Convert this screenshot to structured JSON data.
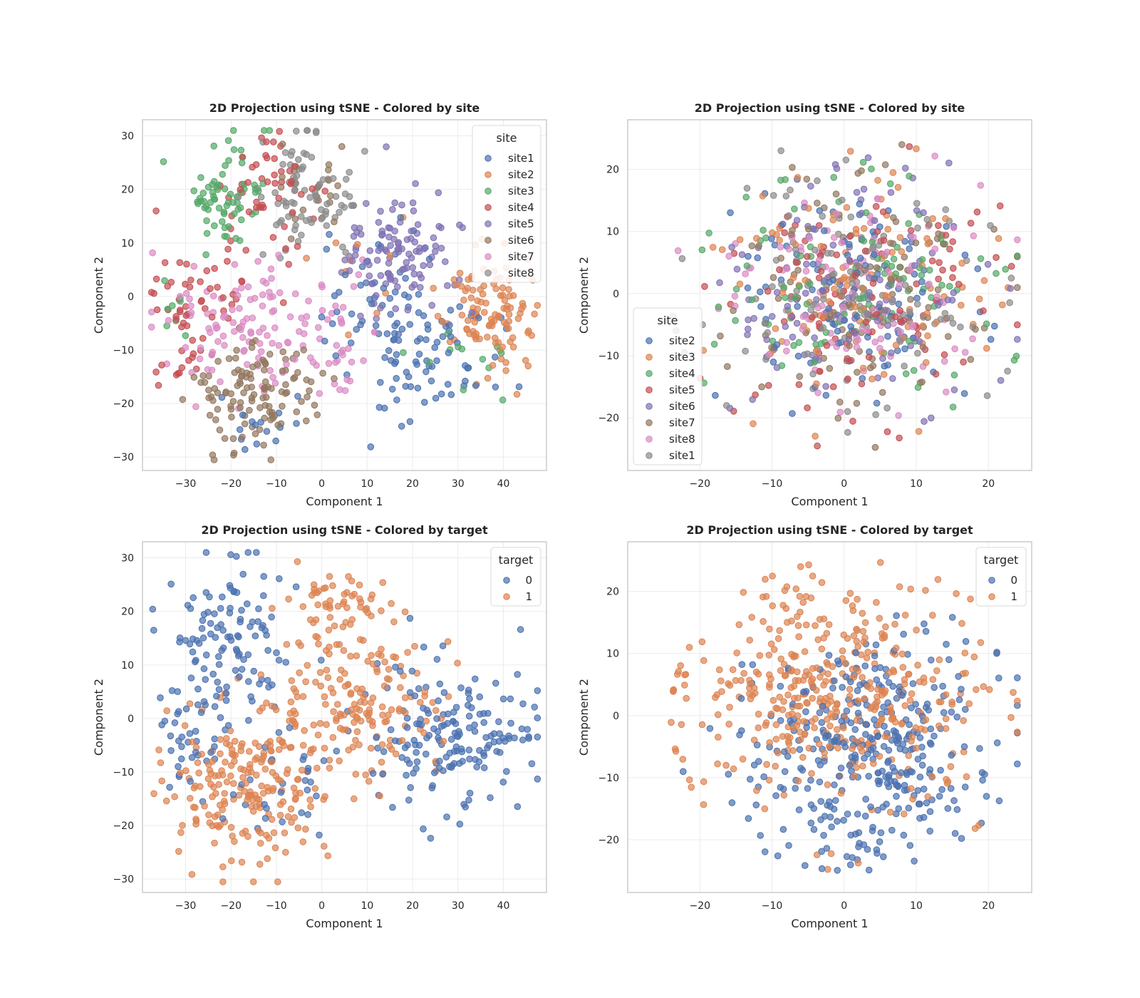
{
  "colors": {
    "blue": "#4c72b0",
    "orange": "#dd8452",
    "green": "#55a868",
    "red": "#c44e52",
    "purple": "#8172b3",
    "brown": "#937860",
    "pink": "#da8bc3",
    "gray": "#8c8c8c",
    "frame": "#cccccc",
    "grid": "#ebebeb",
    "text": "#262626"
  },
  "chart_data": [
    {
      "type": "scatter",
      "title": "2D Projection using tSNE - Colored by site",
      "xlabel": "Component 1",
      "ylabel": "Component 2",
      "xlim": [
        -39.5,
        49.5
      ],
      "ylim": [
        -32.5,
        33
      ],
      "xticks": [
        -30,
        -20,
        -10,
        0,
        10,
        20,
        30,
        40
      ],
      "yticks": [
        -30,
        -20,
        -10,
        0,
        10,
        20,
        30
      ],
      "grid": true,
      "legend": {
        "title": "site",
        "position": "top-right"
      },
      "seed": 11,
      "series": [
        {
          "name": "site1",
          "color": "#4c72b0",
          "clusters": [
            {
              "cx": 22,
              "cy": -11,
              "sx": 8,
              "sy": 6,
              "n": 85
            },
            {
              "cx": 10,
              "cy": 0,
              "sx": 6,
              "sy": 6,
              "n": 35
            },
            {
              "cx": -14,
              "cy": -24,
              "sx": 3,
              "sy": 3,
              "n": 15
            }
          ]
        },
        {
          "name": "site2",
          "color": "#dd8452",
          "clusters": [
            {
              "cx": 37,
              "cy": -3,
              "sx": 5,
              "sy": 6,
              "n": 110
            },
            {
              "cx": 10,
              "cy": 5,
              "sx": 6,
              "sy": 6,
              "n": 10
            }
          ]
        },
        {
          "name": "site3",
          "color": "#55a868",
          "clusters": [
            {
              "cx": -21,
              "cy": 18,
              "sx": 4,
              "sy": 5,
              "n": 70
            },
            {
              "cx": -34,
              "cy": -3,
              "sx": 2,
              "sy": 2,
              "n": 8
            },
            {
              "cx": 30,
              "cy": -12,
              "sx": 6,
              "sy": 4,
              "n": 12
            }
          ]
        },
        {
          "name": "site4",
          "color": "#c44e52",
          "clusters": [
            {
              "cx": -30,
              "cy": -3,
              "sx": 4,
              "sy": 6,
              "n": 45
            },
            {
              "cx": -12,
              "cy": 22,
              "sx": 5,
              "sy": 5,
              "n": 45
            },
            {
              "cx": -20,
              "cy": 5,
              "sx": 8,
              "sy": 8,
              "n": 20
            }
          ]
        },
        {
          "name": "site5",
          "color": "#8172b3",
          "clusters": [
            {
              "cx": 17,
              "cy": 9,
              "sx": 7,
              "sy": 6,
              "n": 110
            }
          ]
        },
        {
          "name": "site6",
          "color": "#937860",
          "clusters": [
            {
              "cx": -15,
              "cy": -18,
              "sx": 7,
              "sy": 5,
              "n": 120
            },
            {
              "cx": -2,
              "cy": 20,
              "sx": 5,
              "sy": 5,
              "n": 20
            }
          ]
        },
        {
          "name": "site7",
          "color": "#da8bc3",
          "clusters": [
            {
              "cx": -18,
              "cy": -4,
              "sx": 8,
              "sy": 7,
              "n": 100
            },
            {
              "cx": 3,
              "cy": -8,
              "sx": 6,
              "sy": 5,
              "n": 40
            }
          ]
        },
        {
          "name": "site8",
          "color": "#8c8c8c",
          "clusters": [
            {
              "cx": -5,
              "cy": 20,
              "sx": 6,
              "sy": 5,
              "n": 85
            }
          ]
        }
      ]
    },
    {
      "type": "scatter",
      "title": "2D Projection using tSNE - Colored by site",
      "xlabel": "Component 1",
      "ylabel": "Component 2",
      "xlim": [
        -30,
        26
      ],
      "ylim": [
        -28.5,
        28
      ],
      "xticks": [
        -20,
        -10,
        0,
        10,
        20
      ],
      "yticks": [
        -20,
        -10,
        0,
        10,
        20
      ],
      "grid": true,
      "legend": {
        "title": "site",
        "position": "bottom-left"
      },
      "seed": 23,
      "series": [
        {
          "name": "site2",
          "color": "#4c72b0",
          "clusters": [
            {
              "cx": 1,
              "cy": 0,
              "sx": 9,
              "sy": 9,
              "n": 110
            }
          ]
        },
        {
          "name": "site3",
          "color": "#dd8452",
          "clusters": [
            {
              "cx": 1,
              "cy": 0,
              "sx": 9,
              "sy": 9,
              "n": 110
            }
          ]
        },
        {
          "name": "site4",
          "color": "#55a868",
          "clusters": [
            {
              "cx": 1,
              "cy": 0,
              "sx": 9,
              "sy": 9,
              "n": 110
            }
          ]
        },
        {
          "name": "site5",
          "color": "#c44e52",
          "clusters": [
            {
              "cx": 1,
              "cy": 0,
              "sx": 9,
              "sy": 9,
              "n": 110
            }
          ]
        },
        {
          "name": "site6",
          "color": "#8172b3",
          "clusters": [
            {
              "cx": 1,
              "cy": 0,
              "sx": 9,
              "sy": 9,
              "n": 110
            }
          ]
        },
        {
          "name": "site7",
          "color": "#937860",
          "clusters": [
            {
              "cx": 1,
              "cy": 0,
              "sx": 9,
              "sy": 9,
              "n": 110
            }
          ]
        },
        {
          "name": "site8",
          "color": "#da8bc3",
          "clusters": [
            {
              "cx": 1,
              "cy": 0,
              "sx": 9,
              "sy": 9,
              "n": 110
            }
          ]
        },
        {
          "name": "site1",
          "color": "#8c8c8c",
          "clusters": [
            {
              "cx": 1,
              "cy": 0,
              "sx": 9,
              "sy": 9,
              "n": 110
            }
          ]
        }
      ]
    },
    {
      "type": "scatter",
      "title": "2D Projection using tSNE - Colored by target",
      "xlabel": "Component 1",
      "ylabel": "Component 2",
      "xlim": [
        -39.5,
        49.5
      ],
      "ylim": [
        -32.5,
        33
      ],
      "xticks": [
        -30,
        -20,
        -10,
        0,
        10,
        20,
        30,
        40
      ],
      "yticks": [
        -30,
        -20,
        -10,
        0,
        10,
        20,
        30
      ],
      "grid": true,
      "legend": {
        "title": "target",
        "position": "top-right"
      },
      "seed": 37,
      "series": [
        {
          "name": "0",
          "color": "#4c72b0",
          "clusters": [
            {
              "cx": 30,
              "cy": -3,
              "sx": 9,
              "sy": 7,
              "n": 170
            },
            {
              "cx": -20,
              "cy": 15,
              "sx": 7,
              "sy": 7,
              "n": 110
            },
            {
              "cx": -28,
              "cy": -3,
              "sx": 5,
              "sy": 6,
              "n": 40
            },
            {
              "cx": -8,
              "cy": -14,
              "sx": 6,
              "sy": 6,
              "n": 30
            }
          ]
        },
        {
          "name": "1",
          "color": "#dd8452",
          "clusters": [
            {
              "cx": -17,
              "cy": -13,
              "sx": 8,
              "sy": 7,
              "n": 200
            },
            {
              "cx": 5,
              "cy": 5,
              "sx": 10,
              "sy": 9,
              "n": 190
            },
            {
              "cx": 2,
              "cy": 22,
              "sx": 5,
              "sy": 4,
              "n": 40
            }
          ]
        }
      ]
    },
    {
      "type": "scatter",
      "title": "2D Projection using tSNE - Colored by target",
      "xlabel": "Component 1",
      "ylabel": "Component 2",
      "xlim": [
        -30,
        26
      ],
      "ylim": [
        -28.5,
        28
      ],
      "xticks": [
        -20,
        -10,
        0,
        10,
        20
      ],
      "yticks": [
        -20,
        -10,
        0,
        10,
        20
      ],
      "grid": true,
      "legend": {
        "title": "target",
        "position": "top-right"
      },
      "seed": 53,
      "series": [
        {
          "name": "0",
          "color": "#4c72b0",
          "clusters": [
            {
              "cx": 3,
              "cy": -6,
              "sx": 8,
              "sy": 9,
              "n": 360
            }
          ]
        },
        {
          "name": "1",
          "color": "#dd8452",
          "clusters": [
            {
              "cx": -1,
              "cy": 4,
              "sx": 10,
              "sy": 9,
              "n": 420
            }
          ]
        }
      ]
    }
  ]
}
